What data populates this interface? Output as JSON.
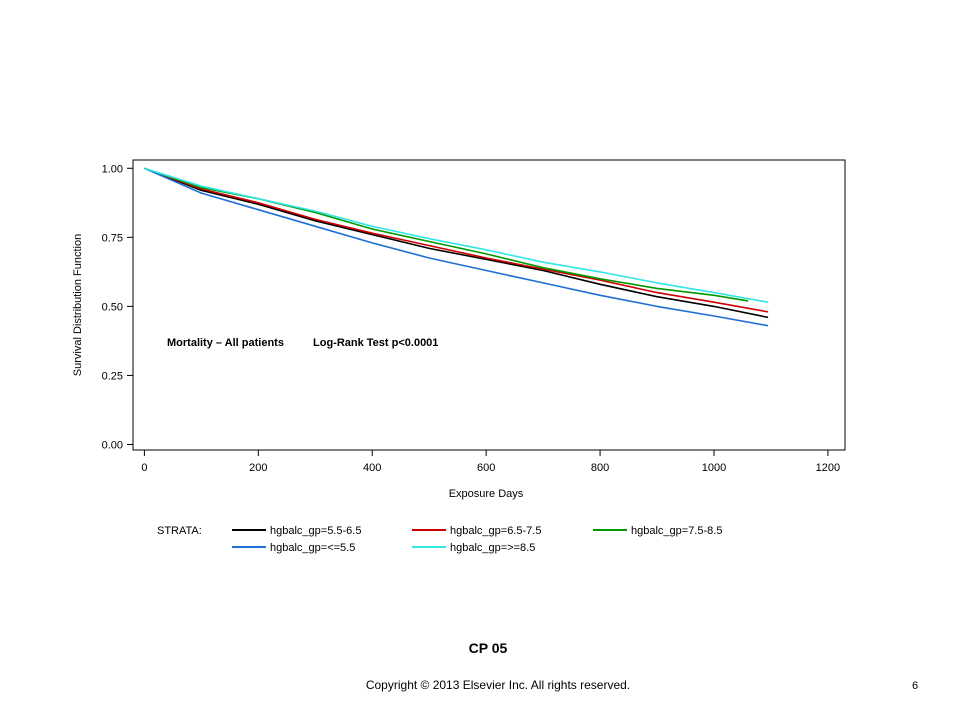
{
  "chart_data": {
    "type": "line",
    "title": "",
    "xlabel": "Exposure Days",
    "ylabel": "Survival Distribution Function",
    "xlim": [
      -20,
      1230
    ],
    "ylim": [
      -0.02,
      1.03
    ],
    "xticks": [
      0,
      200,
      400,
      600,
      800,
      1000,
      1200
    ],
    "xtick_labels": [
      "0",
      "200",
      "400",
      "600",
      "800",
      "1000",
      "1200"
    ],
    "yticks": [
      0,
      0.25,
      0.5,
      0.75,
      1.0
    ],
    "ytick_labels": [
      "0.00",
      "0.25",
      "0.50",
      "0.75",
      "1.00"
    ],
    "grid": false,
    "annotations": [
      "Mortality – All patients",
      "Log-Rank Test p<0.0001"
    ],
    "legend": {
      "placement": "bottom",
      "title": "STRATA:",
      "entries": [
        {
          "label": "hgbalc_gp=5.5-6.5",
          "color": "#000000"
        },
        {
          "label": "hgbalc_gp=6.5-7.5",
          "color": "#cc0000"
        },
        {
          "label": "hgbalc_gp=7.5-8.5",
          "color": "#009900"
        },
        {
          "label": "hgbalc_gp=<=5.5",
          "color": "#1f6fd6"
        },
        {
          "label": "hgbalc_gp=>=8.5",
          "color": "#33e6e6"
        }
      ]
    },
    "series": [
      {
        "name": "hgbalc_gp=5.5-6.5",
        "color": "#000000",
        "x": [
          0,
          100,
          200,
          300,
          400,
          500,
          600,
          700,
          800,
          900,
          1000,
          1095
        ],
        "y": [
          1.0,
          0.92,
          0.87,
          0.81,
          0.76,
          0.71,
          0.67,
          0.63,
          0.58,
          0.535,
          0.5,
          0.46
        ]
      },
      {
        "name": "hgbalc_gp=6.5-7.5",
        "color": "#cc0000",
        "x": [
          0,
          100,
          200,
          300,
          400,
          500,
          600,
          700,
          800,
          900,
          1000,
          1095
        ],
        "y": [
          1.0,
          0.925,
          0.875,
          0.815,
          0.765,
          0.72,
          0.675,
          0.635,
          0.595,
          0.55,
          0.515,
          0.48
        ]
      },
      {
        "name": "hgbalc_gp=7.5-8.5",
        "color": "#009900",
        "x": [
          0,
          100,
          200,
          300,
          400,
          500,
          600,
          700,
          800,
          900,
          1000,
          1060
        ],
        "y": [
          1.0,
          0.93,
          0.89,
          0.84,
          0.78,
          0.735,
          0.69,
          0.64,
          0.6,
          0.565,
          0.54,
          0.52
        ]
      },
      {
        "name": "hgbalc_gp=<=5.5",
        "color": "#1f6fd6",
        "x": [
          0,
          100,
          200,
          300,
          400,
          500,
          600,
          700,
          800,
          900,
          1000,
          1095
        ],
        "y": [
          1.0,
          0.91,
          0.85,
          0.79,
          0.73,
          0.675,
          0.63,
          0.585,
          0.54,
          0.5,
          0.465,
          0.43
        ]
      },
      {
        "name": "hgbalc_gp=>=8.5",
        "color": "#33e6e6",
        "x": [
          0,
          100,
          200,
          300,
          400,
          500,
          600,
          700,
          800,
          900,
          1000,
          1095
        ],
        "y": [
          1.0,
          0.935,
          0.89,
          0.845,
          0.79,
          0.745,
          0.705,
          0.66,
          0.625,
          0.585,
          0.55,
          0.515
        ]
      }
    ]
  },
  "caption": "CP 05",
  "footer": {
    "copyright": "Copyright © 2013 Elsevier Inc. All rights reserved.",
    "page_number": "6"
  }
}
